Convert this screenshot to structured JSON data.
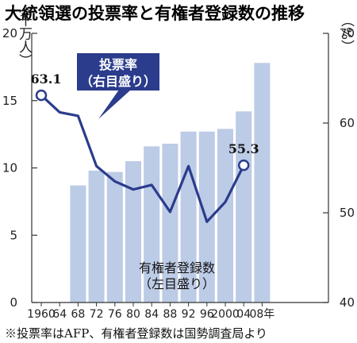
{
  "chart_data": {
    "title": "大統領選の投票率と有権者登録数の推移",
    "type": "bar+line",
    "categories": [
      "1960",
      "64",
      "68",
      "72",
      "76",
      "80",
      "84",
      "88",
      "92",
      "96",
      "2000",
      "04",
      "08年"
    ],
    "series": [
      {
        "name": "有権者登録数",
        "axis_note": "（左目盛り）",
        "type": "bar",
        "unit": "千万人",
        "values": [
          null,
          null,
          8.7,
          9.8,
          9.7,
          10.5,
          11.6,
          11.8,
          12.7,
          12.7,
          12.9,
          14.2,
          17.8
        ]
      },
      {
        "name": "投票率",
        "axis_note": "（右目盛り）",
        "type": "line",
        "unit": "%",
        "values": [
          63.1,
          61.2,
          60.8,
          55.2,
          53.5,
          52.6,
          53.1,
          50.1,
          55.2,
          49.0,
          51.2,
          55.3,
          null
        ]
      }
    ],
    "y_left": {
      "unit_label": "（千万人）",
      "ylim": [
        0,
        20
      ],
      "ticks": [
        "0",
        "5",
        "10",
        "15",
        "20"
      ]
    },
    "y_right": {
      "unit_label": "（%）",
      "ylim": [
        40,
        70
      ],
      "ticks": [
        "40",
        "50",
        "60",
        "70"
      ]
    },
    "annotations": [
      {
        "label": "63.1",
        "category": "1960"
      },
      {
        "label": "55.3",
        "category": "04"
      }
    ],
    "note": "※投票率はAFP、有権者登録数は国勢調査局より",
    "colors": {
      "bar": "#bccbe6",
      "line": "#2b3c8c",
      "legend_box": "#2b3c8c",
      "marker_fill": "#ffffff"
    }
  }
}
